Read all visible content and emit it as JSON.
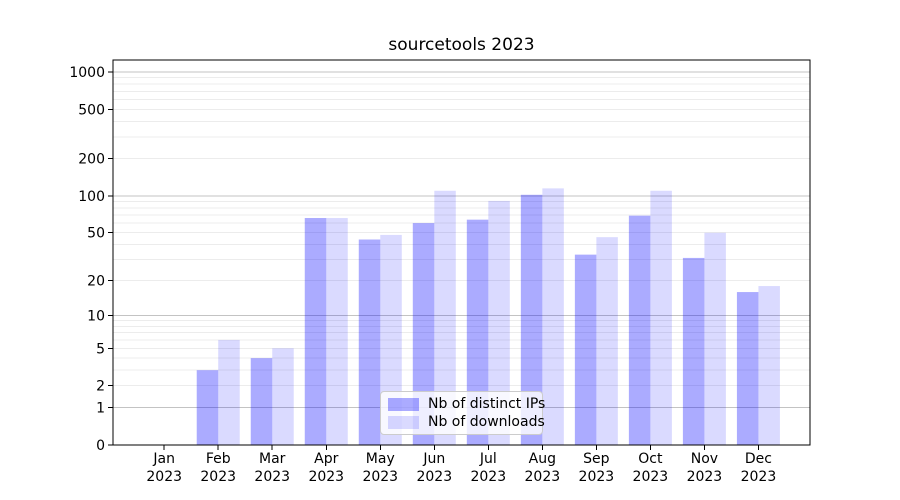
{
  "chart_data": {
    "type": "bar",
    "title": "sourcetools 2023",
    "categories": [
      "Jan",
      "Feb",
      "Mar",
      "Apr",
      "May",
      "Jun",
      "Jul",
      "Aug",
      "Sep",
      "Oct",
      "Nov",
      "Dec"
    ],
    "x_year_label": "2023",
    "series": [
      {
        "name": "Nb of distinct IPs",
        "color": "rgba(0,0,255,0.33)",
        "values": [
          0,
          3,
          4,
          66,
          44,
          60,
          64,
          102,
          33,
          69,
          31,
          16
        ]
      },
      {
        "name": "Nb of downloads",
        "color": "rgba(0,0,255,0.145)",
        "values": [
          0,
          6,
          5,
          66,
          48,
          110,
          91,
          115,
          46,
          110,
          50,
          18
        ]
      }
    ],
    "yscale": "log1p",
    "yticks": [
      0,
      1,
      2,
      5,
      10,
      20,
      50,
      100,
      200,
      500,
      1000
    ],
    "ylim": [
      0,
      1250
    ],
    "grid": "on",
    "major_grid_values": [
      1,
      10,
      100,
      1000
    ],
    "legend_position": "lower-center",
    "colors": {
      "bar_ips_effective": "#aaaaf7",
      "bar_downloads_effective": "#dadaf9",
      "major_grid": "#c3c3c3",
      "minor_grid": "#ececec",
      "frame": "#000000"
    }
  }
}
